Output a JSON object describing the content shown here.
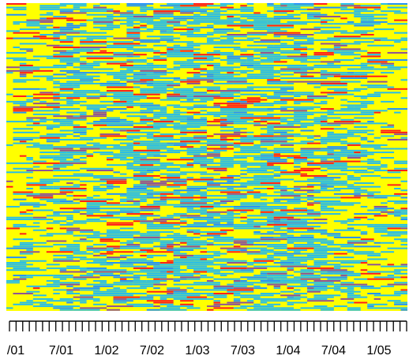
{
  "chart_data": {
    "type": "heatmap",
    "title": "",
    "xlabel": "",
    "ylabel": "",
    "x_tick_labels": [
      "/01",
      "7/01",
      "1/02",
      "7/02",
      "1/03",
      "7/03",
      "1/04",
      "7/04",
      "1/05"
    ],
    "x_minor_ticks": 60,
    "n_rows": 170,
    "n_cols": 60,
    "grid": false,
    "legend": "none",
    "colors": {
      "background": "#ffff00",
      "level_low": "#ffff00",
      "level_1": "#22bbee",
      "level_2": "#1e90ff",
      "level_3": "#8a4f9a",
      "level_4": "#ff1a1a"
    },
    "pattern_note": "Dense horizontal streaks; cyan/blue most frequent, with occasional red and purple cells; more yellow at the left and right edges."
  }
}
